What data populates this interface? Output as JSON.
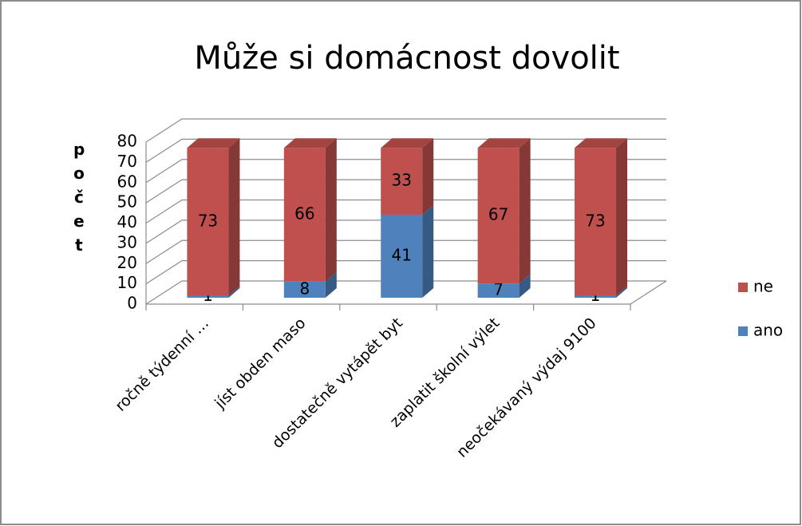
{
  "chart_data": {
    "type": "bar3d_stacked",
    "title": "Může si domácnost dovolit",
    "y_label": "počet",
    "categories": [
      "ročně týdenní …",
      "jíst obden maso",
      "dostatečně vytápět byt",
      "zaplatit školní výlet",
      "neočekávaný výdaj 9100"
    ],
    "series": [
      {
        "name": "ano",
        "color": "#4f81bd",
        "values": [
          1,
          8,
          41,
          7,
          1
        ]
      },
      {
        "name": "ne",
        "color": "#c0504d",
        "values": [
          73,
          66,
          33,
          67,
          73
        ]
      }
    ],
    "ylim": [
      0,
      80
    ],
    "yticks": [
      0,
      10,
      20,
      30,
      40,
      50,
      60,
      70,
      80
    ],
    "grid": true,
    "legend": "right"
  }
}
